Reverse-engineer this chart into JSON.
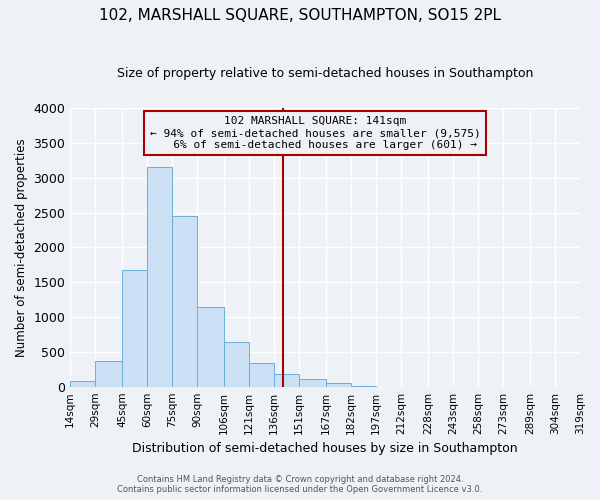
{
  "title": "102, MARSHALL SQUARE, SOUTHAMPTON, SO15 2PL",
  "subtitle": "Size of property relative to semi-detached houses in Southampton",
  "xlabel": "Distribution of semi-detached houses by size in Southampton",
  "ylabel": "Number of semi-detached properties",
  "bin_edges": [
    14,
    29,
    45,
    60,
    75,
    90,
    106,
    121,
    136,
    151,
    167,
    182,
    197,
    212,
    228,
    243,
    258,
    273,
    289,
    304,
    319
  ],
  "bar_heights": [
    75,
    370,
    1680,
    3150,
    2450,
    1150,
    635,
    335,
    185,
    115,
    55,
    10,
    0,
    0,
    0,
    0,
    0,
    0,
    0,
    0
  ],
  "bar_color": "#cce0f5",
  "bar_edge_color": "#6baed6",
  "property_size": 141,
  "vline_color": "#aa0000",
  "annotation_box_edge_color": "#aa0000",
  "annotation_line1": "102 MARSHALL SQUARE: 141sqm",
  "annotation_line2": "← 94% of semi-detached houses are smaller (9,575)",
  "annotation_line3": "   6% of semi-detached houses are larger (601) →",
  "ylim": [
    0,
    4000
  ],
  "yticks": [
    0,
    500,
    1000,
    1500,
    2000,
    2500,
    3000,
    3500,
    4000
  ],
  "footer_line1": "Contains HM Land Registry data © Crown copyright and database right 2024.",
  "footer_line2": "Contains public sector information licensed under the Open Government Licence v3.0.",
  "background_color": "#eef2f7",
  "grid_color": "#ffffff"
}
